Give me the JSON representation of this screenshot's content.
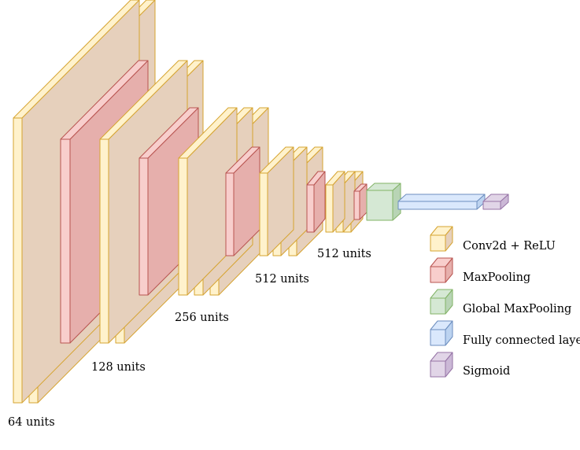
{
  "colors": {
    "conv": {
      "front": "#FFF2CC",
      "side": "#FCE3B0",
      "stroke": "#D6A431"
    },
    "pool": {
      "front": "#F8CECC",
      "side": "#E6AFAC",
      "stroke": "#B85450"
    },
    "gpool": {
      "front": "#D5E8D4",
      "side": "#B8D4B5",
      "stroke": "#82B366"
    },
    "fc": {
      "front": "#DAE8FC",
      "side": "#BCD3F0",
      "stroke": "#6C8EBF"
    },
    "sig": {
      "front": "#E1D5E7",
      "side": "#CBB8D6",
      "stroke": "#9673A6"
    },
    "shadow": "#E6D0BC"
  },
  "stage_labels": {
    "block1": "64 units",
    "block2": "128 units",
    "block3": "256 units",
    "block4": "512 units",
    "block5": "512 units"
  },
  "legend": [
    {
      "key": "conv",
      "label": "Conv2d + ReLU"
    },
    {
      "key": "pool",
      "label": "MaxPooling"
    },
    {
      "key": "gpool",
      "label": "Global MaxPooling"
    },
    {
      "key": "fc",
      "label": "Fully connected layer"
    },
    {
      "key": "sig",
      "label": "Sigmoid"
    }
  ],
  "network": [
    {
      "block": "block1",
      "layers": [
        "conv",
        "conv",
        "pool"
      ]
    },
    {
      "block": "block2",
      "layers": [
        "conv",
        "conv",
        "pool"
      ]
    },
    {
      "block": "block3",
      "layers": [
        "conv",
        "conv",
        "conv",
        "pool"
      ]
    },
    {
      "block": "block4",
      "layers": [
        "conv",
        "conv",
        "conv",
        "pool"
      ]
    },
    {
      "block": "block5",
      "layers": [
        "conv",
        "conv",
        "conv",
        "pool"
      ]
    },
    {
      "block": "head",
      "layers": [
        "gpool",
        "fc",
        "sig"
      ]
    }
  ]
}
